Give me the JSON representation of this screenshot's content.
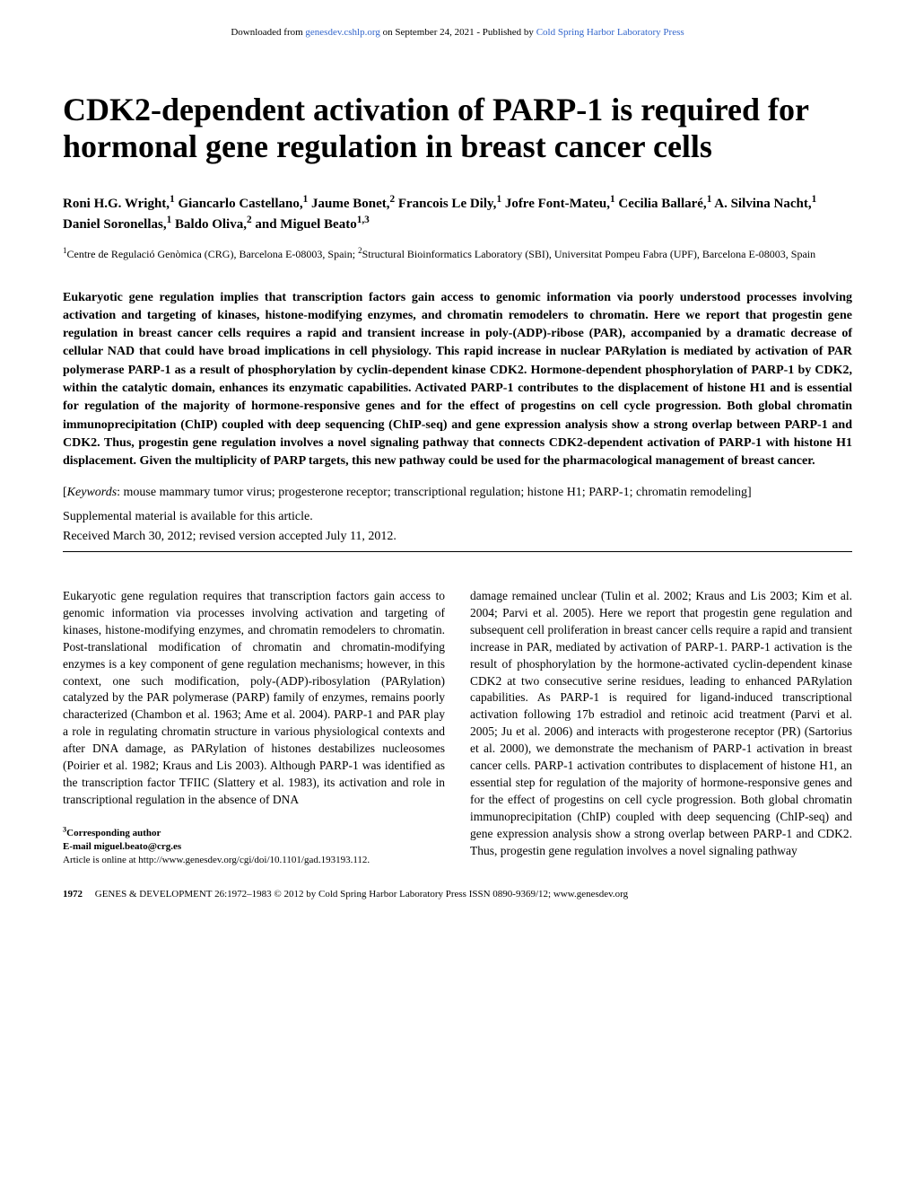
{
  "header": {
    "download_prefix": "Downloaded from ",
    "link1": "genesdev.cshlp.org",
    "mid": " on September 24, 2021 - Published by ",
    "link2": "Cold Spring Harbor Laboratory Press"
  },
  "title": "CDK2-dependent activation of PARP-1 is required for hormonal gene regulation in breast cancer cells",
  "authors_html": "Roni H.G. Wright,<sup>1</sup> Giancarlo Castellano,<sup>1</sup> Jaume Bonet,<sup>2</sup> Francois Le Dily,<sup>1</sup> Jofre Font-Mateu,<sup>1</sup> Cecilia Ballaré,<sup>1</sup> A. Silvina Nacht,<sup>1</sup> Daniel Soronellas,<sup>1</sup> Baldo Oliva,<sup>2</sup> and Miguel Beato<sup>1,3</sup>",
  "affiliations_html": "<sup>1</sup>Centre de Regulació Genòmica (CRG), Barcelona E-08003, Spain; <sup>2</sup>Structural Bioinformatics Laboratory (SBI), Universitat Pompeu Fabra (UPF), Barcelona E-08003, Spain",
  "abstract": "Eukaryotic gene regulation implies that transcription factors gain access to genomic information via poorly understood processes involving activation and targeting of kinases, histone-modifying enzymes, and chromatin remodelers to chromatin. Here we report that progestin gene regulation in breast cancer cells requires a rapid and transient increase in poly-(ADP)-ribose (PAR), accompanied by a dramatic decrease of cellular NAD that could have broad implications in cell physiology. This rapid increase in nuclear PARylation is mediated by activation of PAR polymerase PARP-1 as a result of phosphorylation by cyclin-dependent kinase CDK2. Hormone-dependent phosphorylation of PARP-1 by CDK2, within the catalytic domain, enhances its enzymatic capabilities. Activated PARP-1 contributes to the displacement of histone H1 and is essential for regulation of the majority of hormone-responsive genes and for the effect of progestins on cell cycle progression. Both global chromatin immunoprecipitation (ChIP) coupled with deep sequencing (ChIP-seq) and gene expression analysis show a strong overlap between PARP-1 and CDK2. Thus, progestin gene regulation involves a novel signaling pathway that connects CDK2-dependent activation of PARP-1 with histone H1 displacement. Given the multiplicity of PARP targets, this new pathway could be used for the pharmacological management of breast cancer.",
  "keywords_html": "[<i>Keywords</i>: mouse mammary tumor virus; progesterone receptor; transcriptional regulation; histone H1; PARP-1; chromatin remodeling]",
  "supplemental": "Supplemental material is available for this article.",
  "dates": "Received March 30, 2012; revised version accepted July 11, 2012.",
  "body": {
    "col1": "Eukaryotic gene regulation requires that transcription factors gain access to genomic information via processes involving activation and targeting of kinases, histone-modifying enzymes, and chromatin remodelers to chromatin. Post-translational modification of chromatin and chromatin-modifying enzymes is a key component of gene regulation mechanisms; however, in this context, one such modification, poly-(ADP)-ribosylation (PARylation) catalyzed by the PAR polymerase (PARP) family of enzymes, remains poorly characterized (Chambon et al. 1963; Ame et al. 2004). PARP-1 and PAR play a role in regulating chromatin structure in various physiological contexts and after DNA damage, as PARylation of histones destabilizes nucleosomes (Poirier et al. 1982; Kraus and Lis 2003). Although PARP-1 was identified as the transcription factor TFIIC (Slattery et al. 1983), its activation and role in transcriptional regulation in the absence of DNA",
    "col2": "damage remained unclear (Tulin et al. 2002; Kraus and Lis 2003; Kim et al. 2004; Parvi et al. 2005). Here we report that progestin gene regulation and subsequent cell proliferation in breast cancer cells require a rapid and transient increase in PAR, mediated by activation of PARP-1. PARP-1 activation is the result of phosphorylation by the hormone-activated cyclin-dependent kinase CDK2 at two consecutive serine residues, leading to enhanced PARylation capabilities. As PARP-1 is required for ligand-induced transcriptional activation following 17b estradiol and retinoic acid treatment (Parvi et al. 2005; Ju et al. 2006) and interacts with progesterone receptor (PR) (Sartorius et al. 2000), we demonstrate the mechanism of PARP-1 activation in breast cancer cells. PARP-1 activation contributes to displacement of histone H1, an essential step for regulation of the majority of hormone-responsive genes and for the effect of progestins on cell cycle progression. Both global chromatin immunoprecipitation (ChIP) coupled with deep sequencing (ChIP-seq) and gene expression analysis show a strong overlap between PARP-1 and CDK2. Thus, progestin gene regulation involves a novel signaling pathway"
  },
  "corresponding": {
    "label": "Corresponding author",
    "email_label": "E-mail ",
    "email": "miguel.beato@crg.es",
    "article_online": "Article is online at http://www.genesdev.org/cgi/doi/10.1101/gad.193193.112."
  },
  "footer": {
    "page": "1972",
    "text": "GENES & DEVELOPMENT 26:1972–1983 © 2012 by Cold Spring Harbor Laboratory Press ISSN 0890-9369/12; www.genesdev.org"
  }
}
